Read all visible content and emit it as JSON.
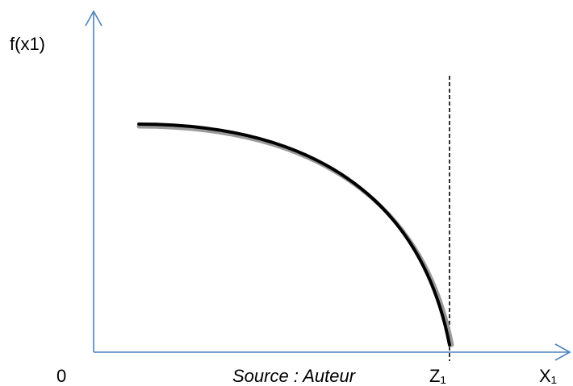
{
  "labels": {
    "y_axis": "f(x1)",
    "origin": "0",
    "source": "Source : Auteur",
    "z_marker": "Z₁",
    "x_axis": "X₁"
  },
  "colors": {
    "axis": "#4F81BD",
    "curve": "#000000",
    "curve_shadow": "#9A9A9A",
    "dashed_line": "#000000"
  }
}
